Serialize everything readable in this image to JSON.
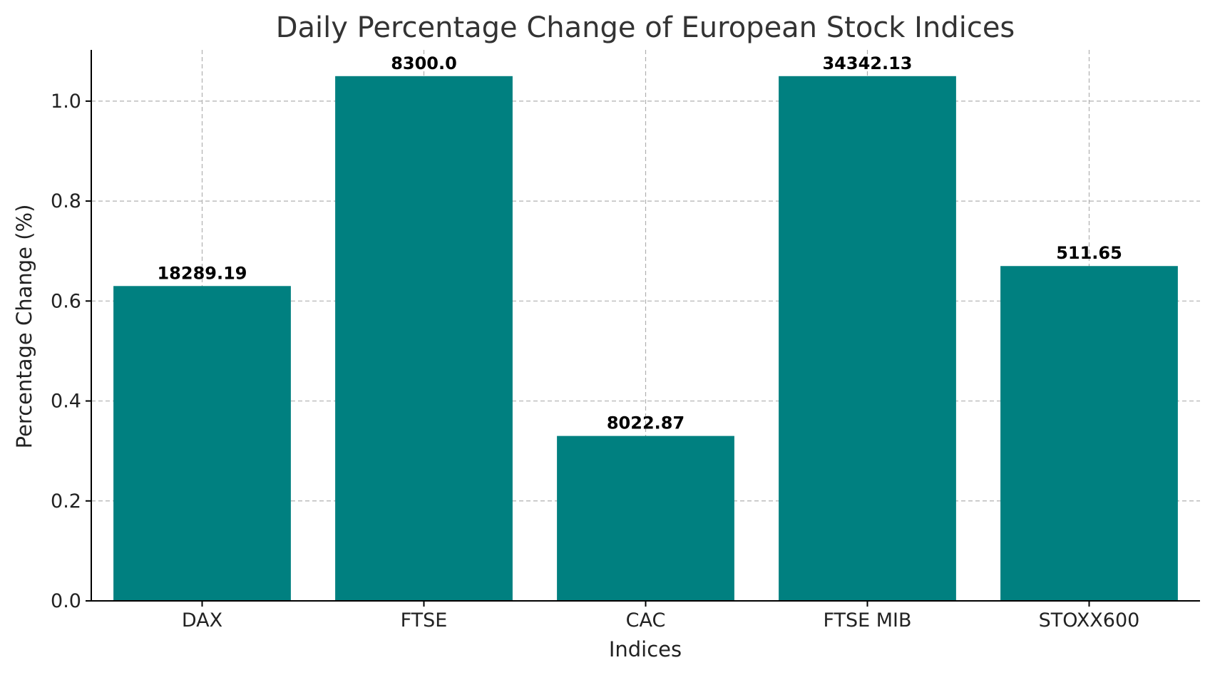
{
  "chart_data": {
    "type": "bar",
    "title": "Daily Percentage Change of European Stock Indices",
    "xlabel": "Indices",
    "ylabel": "Percentage Change (%)",
    "categories": [
      "DAX",
      "FTSE",
      "CAC",
      "FTSE MIB",
      "STOXX600"
    ],
    "values": [
      0.63,
      1.05,
      0.33,
      1.05,
      0.67
    ],
    "data_labels": [
      "18289.19",
      "8300.0",
      "8022.87",
      "34342.13",
      "511.65"
    ],
    "ylim": [
      0,
      1.1025
    ],
    "yticks": [
      "0.0",
      "0.2",
      "0.4",
      "0.6",
      "0.8",
      "1.0"
    ],
    "grid": true,
    "bar_color": "#008080"
  }
}
